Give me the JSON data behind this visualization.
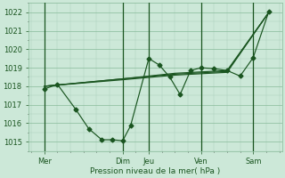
{
  "bg_color": "#cce8d8",
  "grid_major_color": "#88bb99",
  "grid_minor_color": "#aaccbb",
  "line_color": "#1a5520",
  "ylabel": "Pression niveau de la mer( hPa )",
  "ylim": [
    1014.5,
    1022.5
  ],
  "yticks": [
    1015,
    1016,
    1017,
    1018,
    1019,
    1020,
    1021,
    1022
  ],
  "x_tick_labels": [
    "Mer",
    "Dim",
    "Jeu",
    "Ven",
    "Sam"
  ],
  "x_tick_positions": [
    0.5,
    3.5,
    4.5,
    6.5,
    8.5
  ],
  "x_vlines": [
    0.5,
    3.5,
    4.5,
    6.5,
    8.5
  ],
  "xlim": [
    -0.1,
    9.6
  ],
  "series1_x": [
    0.5,
    1.0,
    1.7,
    2.2,
    2.7,
    3.1,
    3.5,
    3.8,
    4.5,
    4.9,
    5.3,
    5.7,
    6.1,
    6.5,
    7.0,
    7.5,
    8.0,
    8.5,
    9.1
  ],
  "series1_y": [
    1017.85,
    1018.1,
    1016.75,
    1015.7,
    1015.1,
    1015.1,
    1015.05,
    1015.85,
    1019.5,
    1019.15,
    1018.5,
    1017.55,
    1018.85,
    1019.0,
    1018.95,
    1018.85,
    1018.55,
    1019.55,
    1022.05
  ],
  "series2_x": [
    0.5,
    3.5,
    5.5,
    7.5,
    9.1
  ],
  "series2_y": [
    1018.0,
    1018.4,
    1018.7,
    1018.85,
    1022.0
  ],
  "series3_x": [
    0.5,
    3.5,
    5.5,
    7.5,
    9.1
  ],
  "series3_y": [
    1018.0,
    1018.4,
    1018.65,
    1018.8,
    1022.0
  ],
  "series4_x": [
    0.5,
    3.5,
    5.5,
    7.5,
    9.1
  ],
  "series4_y": [
    1018.0,
    1018.35,
    1018.6,
    1018.75,
    1022.0
  ]
}
